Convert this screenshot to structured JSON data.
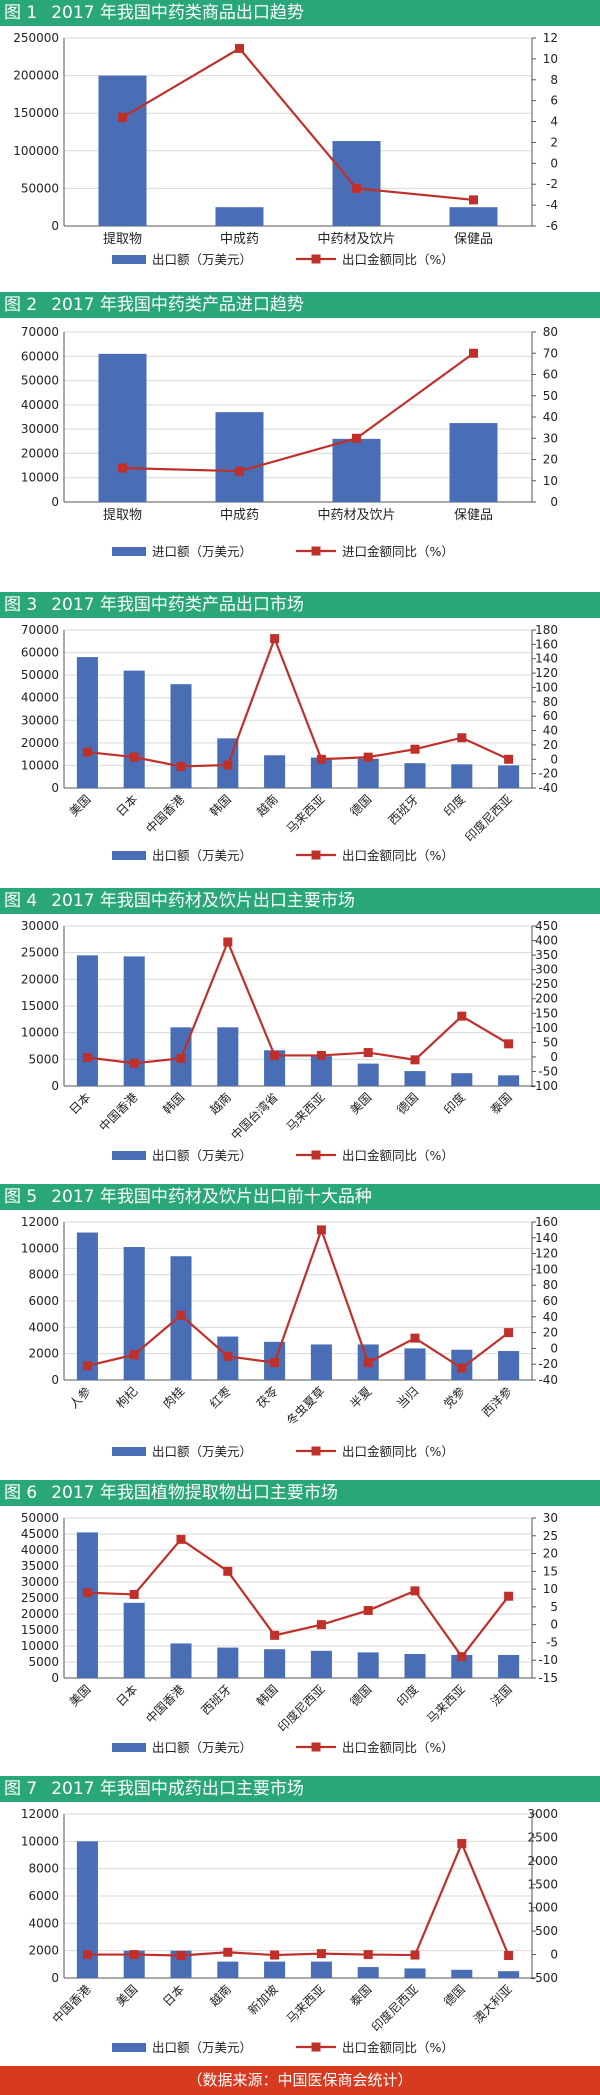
{
  "footer": "（数据来源：中国医保商会统计）",
  "colors": {
    "header": "#2aa779",
    "footer": "#d73a1f",
    "bar": "#4a6eb5",
    "line": "#c0302a"
  },
  "charts": [
    {
      "fig": "图 1",
      "title": "2017 年我国中药类商品出口趋势",
      "legend": [
        "出口额（万美元）",
        "出口金额同比（%）"
      ],
      "left_ticks": [
        "0",
        "50000",
        "100000",
        "150000",
        "200000",
        "250000"
      ],
      "right_ticks": [
        "-6",
        "-4",
        "-2",
        "0",
        "2",
        "4",
        "6",
        "8",
        "10",
        "12"
      ],
      "chart_data": {
        "type": "bar",
        "categories": [
          "提取物",
          "中成药",
          "中药材及饮片",
          "保健品"
        ],
        "series": [
          {
            "name": "出口额（万美元）",
            "values": [
              200000,
              25000,
              113000,
              25000
            ],
            "axis": "left"
          },
          {
            "name": "出口金额同比（%）",
            "values": [
              4.4,
              11.0,
              -2.4,
              -3.5
            ],
            "axis": "right",
            "type": "line"
          }
        ],
        "ylim_left": [
          0,
          250000
        ],
        "ylim_right": [
          -6,
          12
        ]
      }
    },
    {
      "fig": "图 2",
      "title": "2017 年我国中药类产品进口趋势",
      "legend": [
        "进口额（万美元）",
        "进口金额同比（%）"
      ],
      "left_ticks": [
        "0",
        "10000",
        "20000",
        "30000",
        "40000",
        "50000",
        "60000",
        "70000"
      ],
      "right_ticks": [
        "0",
        "10",
        "20",
        "30",
        "40",
        "50",
        "60",
        "70",
        "80"
      ],
      "chart_data": {
        "type": "bar",
        "categories": [
          "提取物",
          "中成药",
          "中药材及饮片",
          "保健品"
        ],
        "series": [
          {
            "name": "进口额（万美元）",
            "values": [
              61000,
              37000,
              26000,
              32500
            ],
            "axis": "left"
          },
          {
            "name": "进口金额同比（%）",
            "values": [
              16,
              14.5,
              30,
              70
            ],
            "axis": "right",
            "type": "line"
          }
        ],
        "ylim_left": [
          0,
          70000
        ],
        "ylim_right": [
          0,
          80
        ]
      }
    },
    {
      "fig": "图 3",
      "title": "2017 年我国中药类产品出口市场",
      "legend": [
        "出口额（万美元）",
        "出口金额同比（%）"
      ],
      "left_ticks": [
        "0",
        "10000",
        "20000",
        "30000",
        "40000",
        "50000",
        "60000",
        "70000"
      ],
      "right_ticks": [
        "-40",
        "-20",
        "0",
        "20",
        "40",
        "60",
        "80",
        "100",
        "120",
        "140",
        "160",
        "180"
      ],
      "chart_data": {
        "type": "bar",
        "categories": [
          "美国",
          "日本",
          "中国香港",
          "韩国",
          "越南",
          "马来西亚",
          "德国",
          "西班牙",
          "印度",
          "印度尼西亚"
        ],
        "series": [
          {
            "name": "出口额（万美元）",
            "values": [
              58000,
              52000,
              46000,
              22000,
              14500,
              13500,
              13000,
              11000,
              10500,
              10000
            ],
            "axis": "left"
          },
          {
            "name": "出口金额同比（%）",
            "values": [
              10,
              3,
              -10,
              -8,
              168,
              0,
              3,
              14,
              30,
              0
            ],
            "axis": "right",
            "type": "line"
          }
        ],
        "ylim_left": [
          0,
          70000
        ],
        "ylim_right": [
          -40,
          180
        ]
      }
    },
    {
      "fig": "图 4",
      "title": "2017 年我国中药材及饮片出口主要市场",
      "legend": [
        "出口额（万美元）",
        "出口金额同比（%）"
      ],
      "left_ticks": [
        "0",
        "5000",
        "10000",
        "15000",
        "20000",
        "25000",
        "30000"
      ],
      "right_ticks": [
        "-100",
        "-50",
        "0",
        "50",
        "100",
        "150",
        "200",
        "250",
        "300",
        "350",
        "400",
        "450"
      ],
      "chart_data": {
        "type": "bar",
        "categories": [
          "日本",
          "中国香港",
          "韩国",
          "越南",
          "中国台湾省",
          "马来西亚",
          "美国",
          "德国",
          "印度",
          "泰国"
        ],
        "series": [
          {
            "name": "出口额（万美元）",
            "values": [
              24500,
              24300,
              11000,
              11000,
              6700,
              5600,
              4200,
              2800,
              2400,
              2000
            ],
            "axis": "left"
          },
          {
            "name": "出口金额同比（%）",
            "values": [
              -2,
              -22,
              -5,
              395,
              5,
              5,
              15,
              -10,
              140,
              45
            ],
            "axis": "right",
            "type": "line"
          }
        ],
        "ylim_left": [
          0,
          30000
        ],
        "ylim_right": [
          -100,
          450
        ]
      }
    },
    {
      "fig": "图 5",
      "title": "2017 年我国中药材及饮片出口前十大品种",
      "legend": [
        "出口额（万美元）",
        "出口金额同比（%）"
      ],
      "left_ticks": [
        "0",
        "2000",
        "4000",
        "6000",
        "8000",
        "10000",
        "12000"
      ],
      "right_ticks": [
        "-40",
        "-20",
        "0",
        "20",
        "40",
        "60",
        "80",
        "100",
        "120",
        "140",
        "160"
      ],
      "chart_data": {
        "type": "bar",
        "categories": [
          "人参",
          "枸杞",
          "肉桂",
          "红枣",
          "茯苓",
          "冬虫夏草",
          "半夏",
          "当归",
          "党参",
          "西洋参"
        ],
        "series": [
          {
            "name": "出口额（万美元）",
            "values": [
              11200,
              10100,
              9400,
              3300,
              2900,
              2700,
              2700,
              2400,
              2300,
              2200
            ],
            "axis": "left"
          },
          {
            "name": "出口金额同比（%）",
            "values": [
              -22,
              -8,
              42,
              -10,
              -18,
              150,
              -18,
              13,
              -25,
              20
            ],
            "axis": "right",
            "type": "line"
          }
        ],
        "ylim_left": [
          0,
          12000
        ],
        "ylim_right": [
          -40,
          160
        ]
      }
    },
    {
      "fig": "图 6",
      "title": "2017 年我国植物提取物出口主要市场",
      "legend": [
        "出口额（万美元）",
        "出口金额同比（%）"
      ],
      "left_ticks": [
        "0",
        "5000",
        "10000",
        "15000",
        "20000",
        "25000",
        "30000",
        "35000",
        "40000",
        "45000",
        "50000"
      ],
      "right_ticks": [
        "-15",
        "-10",
        "-5",
        "0",
        "5",
        "10",
        "15",
        "20",
        "25",
        "30"
      ],
      "chart_data": {
        "type": "bar",
        "categories": [
          "美国",
          "日本",
          "中国香港",
          "西班牙",
          "韩国",
          "印度尼西亚",
          "德国",
          "印度",
          "马来西亚",
          "法国"
        ],
        "series": [
          {
            "name": "出口额（万美元）",
            "values": [
              45500,
              23500,
              10800,
              9500,
              9000,
              8500,
              8000,
              7500,
              7200,
              7200
            ],
            "axis": "left"
          },
          {
            "name": "出口金额同比（%）",
            "values": [
              9,
              8.5,
              24,
              15,
              -3,
              0,
              4,
              9.5,
              -9,
              8
            ],
            "axis": "right",
            "type": "line"
          }
        ],
        "ylim_left": [
          0,
          50000
        ],
        "ylim_right": [
          -15,
          30
        ]
      }
    },
    {
      "fig": "图 7",
      "title": "2017 年我国中成药出口主要市场",
      "legend": [
        "出口额（万美元）",
        "出口金额同比（%）"
      ],
      "left_ticks": [
        "0",
        "2000",
        "4000",
        "6000",
        "8000",
        "10000",
        "12000"
      ],
      "right_ticks": [
        "-500",
        "0",
        "500",
        "1000",
        "1500",
        "2000",
        "2500",
        "3000"
      ],
      "chart_data": {
        "type": "bar",
        "categories": [
          "中国香港",
          "美国",
          "日本",
          "越南",
          "新加坡",
          "马来西亚",
          "泰国",
          "印度尼西亚",
          "德国",
          "澳大利亚"
        ],
        "series": [
          {
            "name": "出口额（万美元）",
            "values": [
              10000,
              2000,
              2000,
              1200,
              1200,
              1200,
              800,
              700,
              600,
              500
            ],
            "axis": "left"
          },
          {
            "name": "出口金额同比（%）",
            "values": [
              0,
              0,
              -20,
              50,
              -10,
              20,
              0,
              -10,
              2370,
              -20
            ],
            "axis": "right",
            "type": "line"
          }
        ],
        "ylim_left": [
          0,
          12000
        ],
        "ylim_right": [
          -500,
          3000
        ]
      }
    }
  ]
}
